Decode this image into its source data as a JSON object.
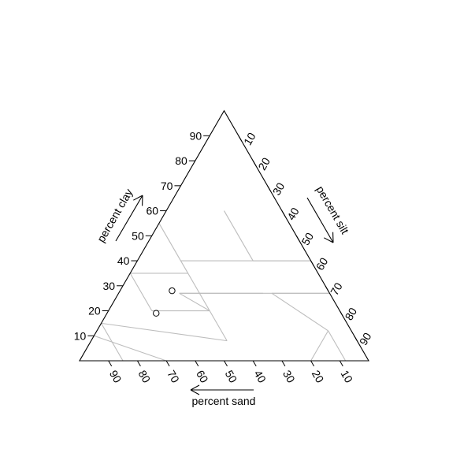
{
  "chart_data": {
    "type": "scatter",
    "subtype": "ternary soil texture triangle",
    "axes": {
      "clay": {
        "label": "percent clay",
        "ticks": [
          "10",
          "20",
          "30",
          "40",
          "50",
          "60",
          "70",
          "80",
          "90"
        ]
      },
      "silt": {
        "label": "percent silt",
        "ticks": [
          "10",
          "20",
          "30",
          "40",
          "50",
          "60",
          "70",
          "80",
          "90"
        ]
      },
      "sand": {
        "label": "percent sand",
        "ticks": [
          "90",
          "80",
          "70",
          "60",
          "50",
          "40",
          "30",
          "20",
          "10"
        ]
      }
    },
    "points": [
      {
        "sand": 54,
        "clay": 28,
        "silt": 18
      },
      {
        "sand": 64,
        "clay": 19,
        "silt": 17
      }
    ],
    "class_boundaries": [
      [
        [
          45,
          55
        ],
        [
          45,
          40
        ]
      ],
      [
        [
          65,
          35
        ],
        [
          45,
          35
        ]
      ],
      [
        [
          45,
          40
        ],
        [
          45,
          28
        ]
      ],
      [
        [
          45,
          40
        ],
        [
          0,
          40
        ]
      ],
      [
        [
          52,
          27
        ],
        [
          0,
          27
        ]
      ],
      [
        [
          65,
          20
        ],
        [
          45,
          20
        ]
      ],
      [
        [
          45,
          20
        ],
        [
          45,
          28
        ]
      ],
      [
        [
          52,
          27
        ],
        [
          45,
          20
        ]
      ],
      [
        [
          52,
          27
        ],
        [
          23,
          27
        ]
      ],
      [
        [
          45,
          8
        ],
        [
          45,
          20
        ]
      ],
      [
        [
          45,
          8
        ],
        [
          85,
          15
        ]
      ],
      [
        [
          65,
          20
        ],
        [
          65,
          35
        ]
      ],
      [
        [
          20,
          40
        ],
        [
          20,
          60
        ]
      ],
      [
        [
          20,
          40
        ],
        [
          0,
          40
        ]
      ],
      [
        [
          8,
          12
        ],
        [
          20,
          27
        ]
      ],
      [
        [
          8,
          12
        ],
        [
          8,
          0
        ]
      ],
      [
        [
          20,
          27
        ],
        [
          0,
          27
        ]
      ],
      [
        [
          20,
          0
        ],
        [
          8,
          12
        ]
      ],
      [
        [
          85,
          15
        ],
        [
          90,
          10
        ]
      ],
      [
        [
          85,
          15
        ],
        [
          85,
          0
        ]
      ],
      [
        [
          90,
          10
        ],
        [
          70,
          0
        ]
      ],
      [
        [
          90,
          10
        ],
        [
          100,
          0
        ]
      ]
    ]
  }
}
